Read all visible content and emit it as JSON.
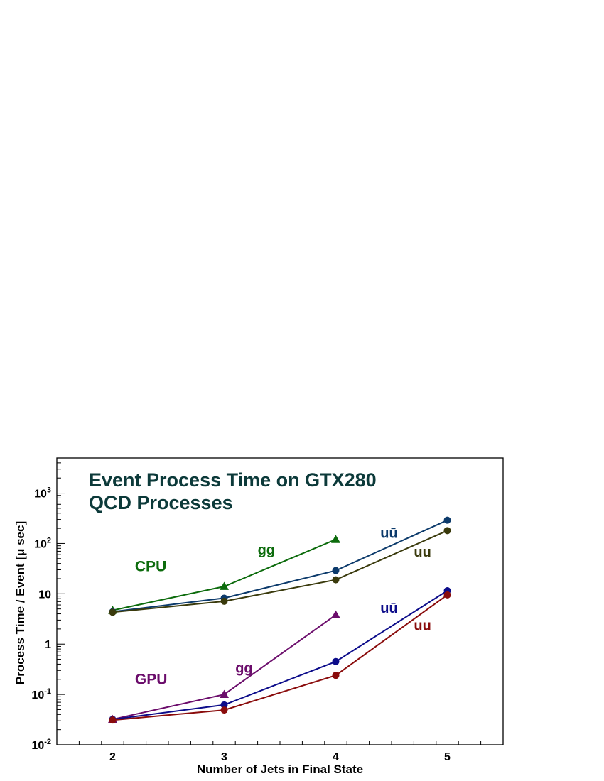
{
  "chart_data": {
    "type": "line",
    "title": [
      "Event Process Time on GTX280",
      "QCD Processes"
    ],
    "xlabel": "Number of Jets in Final State",
    "ylabel": "Process Time / Event [μ sec]",
    "xlim": [
      1.5,
      5.5
    ],
    "ylim": [
      0.01,
      5000
    ],
    "yscale": "log",
    "grid": false,
    "x_ticks": [
      2,
      3,
      4,
      5
    ],
    "x_tick_labels": [
      "2",
      "3",
      "4",
      "5"
    ],
    "y_ticks": [
      {
        "value": 0.01,
        "base": "10",
        "exp": "-2"
      },
      {
        "value": 0.1,
        "base": "10",
        "exp": "-1"
      },
      {
        "value": 1,
        "base": "1",
        "exp": ""
      },
      {
        "value": 10,
        "base": "10",
        "exp": ""
      },
      {
        "value": 100,
        "base": "10",
        "exp": "2"
      },
      {
        "value": 1000,
        "base": "10",
        "exp": "3"
      }
    ],
    "group_labels": [
      {
        "text": "CPU",
        "x": 2.2,
        "y": 28,
        "color": "#0c6b0c"
      },
      {
        "text": "GPU",
        "x": 2.2,
        "y": 0.16,
        "color": "#6b0c6b"
      }
    ],
    "series": [
      {
        "name": "gg",
        "group": "CPU",
        "marker": "triangle",
        "color": "#0c6b0c",
        "x": [
          2,
          3,
          4
        ],
        "y": [
          4.7,
          14,
          120
        ],
        "label_x": 3.3,
        "label_y": 60
      },
      {
        "name": "uū",
        "group": "CPU",
        "marker": "circle",
        "color": "#0c3a6b",
        "x": [
          2,
          3,
          4,
          5
        ],
        "y": [
          4.4,
          8.2,
          29,
          290
        ],
        "label_x": 4.4,
        "label_y": 130
      },
      {
        "name": "uu",
        "group": "CPU",
        "marker": "circle",
        "color": "#3a3a0c",
        "x": [
          2,
          3,
          4,
          5
        ],
        "y": [
          4.3,
          7.1,
          19,
          180
        ],
        "label_x": 4.7,
        "label_y": 55
      },
      {
        "name": "gg",
        "group": "GPU",
        "marker": "triangle",
        "color": "#6b0c6b",
        "x": [
          2,
          3,
          4
        ],
        "y": [
          0.032,
          0.1,
          3.8
        ],
        "label_x": 3.1,
        "label_y": 0.27
      },
      {
        "name": "uū",
        "group": "GPU",
        "marker": "circle",
        "color": "#0c0c8a",
        "x": [
          2,
          3,
          4,
          5
        ],
        "y": [
          0.032,
          0.062,
          0.45,
          11.5
        ],
        "label_x": 4.4,
        "label_y": 4.2
      },
      {
        "name": "uu",
        "group": "GPU",
        "marker": "circle",
        "color": "#8a0c0c",
        "x": [
          2,
          3,
          4,
          5
        ],
        "y": [
          0.031,
          0.049,
          0.24,
          9.5
        ],
        "label_x": 4.7,
        "label_y": 1.9
      }
    ]
  }
}
